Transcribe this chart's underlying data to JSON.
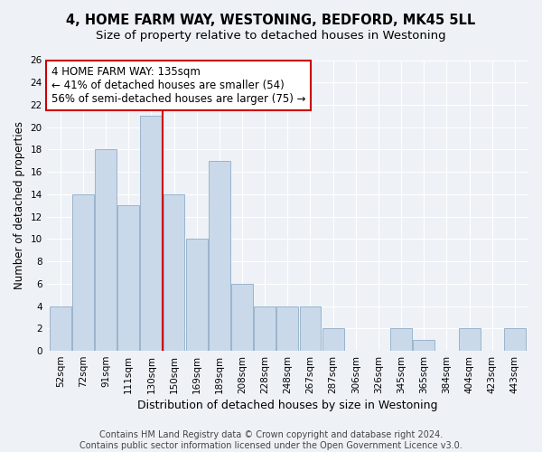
{
  "title": "4, HOME FARM WAY, WESTONING, BEDFORD, MK45 5LL",
  "subtitle": "Size of property relative to detached houses in Westoning",
  "xlabel": "Distribution of detached houses by size in Westoning",
  "ylabel": "Number of detached properties",
  "bar_values": [
    4,
    14,
    18,
    13,
    21,
    14,
    10,
    17,
    6,
    4,
    4,
    4,
    2,
    0,
    0,
    2,
    1,
    0,
    2,
    0,
    2
  ],
  "bar_labels": [
    "52sqm",
    "72sqm",
    "91sqm",
    "111sqm",
    "130sqm",
    "150sqm",
    "169sqm",
    "189sqm",
    "208sqm",
    "228sqm",
    "248sqm",
    "267sqm",
    "287sqm",
    "306sqm",
    "326sqm",
    "345sqm",
    "365sqm",
    "384sqm",
    "404sqm",
    "423sqm",
    "443sqm"
  ],
  "bar_color": "#c9d9ea",
  "bar_edge_color": "#9ab4cc",
  "property_line_color": "#cc0000",
  "annotation_text": "4 HOME FARM WAY: 135sqm\n← 41% of detached houses are smaller (54)\n56% of semi-detached houses are larger (75) →",
  "annotation_box_color": "#cc0000",
  "ylim": [
    0,
    26
  ],
  "yticks": [
    0,
    2,
    4,
    6,
    8,
    10,
    12,
    14,
    16,
    18,
    20,
    22,
    24,
    26
  ],
  "footer_text": "Contains HM Land Registry data © Crown copyright and database right 2024.\nContains public sector information licensed under the Open Government Licence v3.0.",
  "background_color": "#eef2f7",
  "plot_background_color": "#eef2f7",
  "grid_color": "#ffffff",
  "title_fontsize": 10.5,
  "subtitle_fontsize": 9.5,
  "xlabel_fontsize": 9,
  "ylabel_fontsize": 8.5,
  "tick_fontsize": 7.5,
  "annotation_fontsize": 8.5,
  "footer_fontsize": 7
}
